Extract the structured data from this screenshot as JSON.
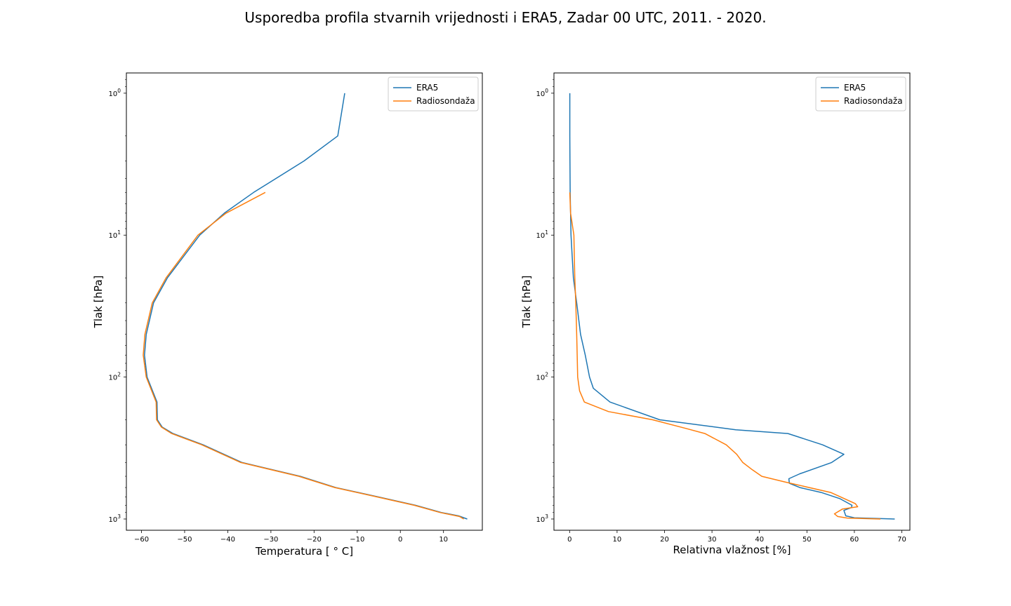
{
  "title": "Usporedba profila stvarnih vrijednosti i ERA5, Zadar 00 UTC, 2011. - 2020.",
  "colors": {
    "ERA5": "#1f77b4",
    "Radiosondaza": "#ff7f0e"
  },
  "chart_data": [
    {
      "type": "line",
      "xlabel": "Temperatura [$^\\circ$ C]",
      "xlabel_display": "Temperatura [ ° C]",
      "ylabel": "Tlak [hPa]",
      "yscale": "log",
      "yinverted": true,
      "xlim": [
        -63.5,
        19
      ],
      "ylim": [
        1200,
        0.72
      ],
      "xticks": [
        -60,
        -50,
        -40,
        -30,
        -20,
        -10,
        0,
        10
      ],
      "xtick_labels": [
        "−60",
        "−50",
        "−40",
        "−30",
        "−20",
        "−10",
        "0",
        "10"
      ],
      "yticks": [
        1,
        10,
        100,
        1000
      ],
      "ytick_labels": [
        "10^0",
        "10^1",
        "10^2",
        "10^3"
      ],
      "legend": "top-right",
      "series": [
        {
          "name": "ERA5",
          "color": "#1f77b4",
          "x": [
            -12.9,
            -14.5,
            -22.3,
            -34.0,
            -40.8,
            -46.5,
            -54.0,
            -57.2,
            -58.9,
            -59.3,
            -58.7,
            -56.4,
            -56.3,
            -55.2,
            -52.7,
            -45.7,
            -36.7,
            -23.2,
            -15.0,
            -5.0,
            3.5,
            9.5,
            13.5,
            15.5
          ],
          "y": [
            1,
            2,
            3,
            5,
            7,
            10,
            20,
            30,
            50,
            70,
            100,
            150,
            200,
            225,
            250,
            300,
            400,
            500,
            600,
            700,
            800,
            900,
            950,
            1000
          ]
        },
        {
          "name": "Radiosondaža",
          "color": "#ff7f0e",
          "x": [
            -31.3,
            -40.4,
            -46.9,
            -54.3,
            -57.5,
            -59.2,
            -59.6,
            -58.9,
            -56.6,
            -56.5,
            -55.4,
            -53.0,
            -46.0,
            -37.0,
            -23.5,
            -15.2,
            -5.3,
            3.2,
            9.2,
            13.7,
            14.7
          ],
          "y": [
            5,
            7,
            10,
            20,
            30,
            50,
            70,
            100,
            150,
            200,
            225,
            250,
            300,
            400,
            500,
            600,
            700,
            800,
            900,
            960,
            1000
          ]
        }
      ]
    },
    {
      "type": "line",
      "xlabel": "Relativna vlažnost [%]",
      "ylabel": "Tlak [hPa]",
      "yscale": "log",
      "yinverted": true,
      "xlim": [
        -3.3,
        71.7
      ],
      "ylim": [
        1200,
        0.72
      ],
      "xticks": [
        0,
        10,
        20,
        30,
        40,
        50,
        60,
        70
      ],
      "xtick_labels": [
        "0",
        "10",
        "20",
        "30",
        "40",
        "50",
        "60",
        "70"
      ],
      "yticks": [
        1,
        10,
        100,
        1000
      ],
      "ytick_labels": [
        "10^0",
        "10^1",
        "10^2",
        "10^3"
      ],
      "legend": "top-right",
      "series": [
        {
          "name": "ERA5",
          "color": "#1f77b4",
          "x": [
            0.05,
            0.05,
            0.08,
            0.12,
            0.2,
            0.3,
            0.8,
            1.5,
            2.3,
            3.3,
            4.2,
            5.0,
            8.5,
            19.0,
            35.0,
            46.0,
            53.3,
            57.8,
            55.2,
            48.5,
            46.2,
            46.3,
            48.5,
            53.0,
            57.0,
            59.5,
            59.4,
            57.8,
            58.2,
            60.0,
            68.5
          ],
          "y": [
            1,
            2,
            3,
            5,
            7,
            10,
            20,
            30,
            50,
            70,
            100,
            120,
            150,
            200,
            235,
            250,
            300,
            350,
            400,
            480,
            520,
            560,
            600,
            650,
            720,
            800,
            830,
            870,
            950,
            980,
            1000
          ]
        },
        {
          "name": "Radiosondaža",
          "color": "#ff7f0e",
          "x": [
            0.05,
            0.2,
            0.9,
            1.1,
            1.3,
            1.5,
            1.6,
            1.7,
            2.1,
            3.1,
            8.2,
            17.5,
            24.5,
            28.5,
            33.0,
            35.2,
            36.5,
            38.5,
            40.5,
            45.5,
            55.0,
            60.2,
            60.7,
            57.5,
            55.8,
            56.5,
            58.5,
            65.5
          ],
          "y": [
            5,
            7,
            10,
            20,
            30,
            50,
            70,
            100,
            125,
            150,
            175,
            200,
            230,
            250,
            300,
            350,
            400,
            450,
            500,
            550,
            650,
            780,
            820,
            850,
            920,
            960,
            985,
            1000
          ]
        }
      ]
    }
  ]
}
